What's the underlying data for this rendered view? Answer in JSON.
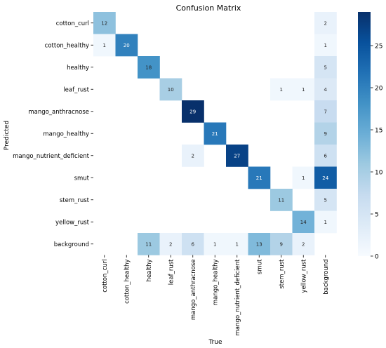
{
  "chart_data": {
    "type": "heatmap",
    "title": "Confusion Matrix",
    "xlabel": "True",
    "ylabel": "Predicted",
    "x_categories": [
      "cotton_curl",
      "cotton_healthy",
      "healthy",
      "leaf_rust",
      "mango_anthracnose",
      "mango_healthy",
      "mango_nutrient_deficient",
      "smut",
      "stem_rust",
      "yellow_rust",
      "background"
    ],
    "y_categories": [
      "cotton_curl",
      "cotton_healthy",
      "healthy",
      "leaf_rust",
      "mango_anthracnose",
      "mango_healthy",
      "mango_nutrient_deficient",
      "smut",
      "stem_rust",
      "yellow_rust",
      "background"
    ],
    "matrix": [
      [
        12,
        null,
        null,
        null,
        null,
        null,
        null,
        null,
        null,
        null,
        2
      ],
      [
        1,
        20,
        null,
        null,
        null,
        null,
        null,
        null,
        null,
        null,
        1
      ],
      [
        null,
        null,
        18,
        null,
        null,
        null,
        null,
        null,
        null,
        null,
        5
      ],
      [
        null,
        null,
        null,
        10,
        null,
        null,
        null,
        null,
        1,
        1,
        4
      ],
      [
        null,
        null,
        null,
        null,
        29,
        null,
        null,
        null,
        null,
        null,
        7
      ],
      [
        null,
        null,
        null,
        null,
        null,
        21,
        null,
        null,
        null,
        null,
        9
      ],
      [
        null,
        null,
        null,
        null,
        2,
        null,
        27,
        null,
        null,
        null,
        6
      ],
      [
        null,
        null,
        null,
        null,
        null,
        null,
        null,
        21,
        null,
        1,
        24
      ],
      [
        null,
        null,
        null,
        null,
        null,
        null,
        null,
        null,
        11,
        null,
        5
      ],
      [
        null,
        null,
        null,
        null,
        null,
        null,
        null,
        null,
        null,
        14,
        1
      ],
      [
        null,
        null,
        11,
        2,
        6,
        1,
        1,
        13,
        9,
        2,
        null
      ]
    ],
    "colorbar": {
      "min": 0,
      "max": 29,
      "ticks": [
        0,
        5,
        10,
        15,
        20,
        25
      ]
    },
    "colormap": {
      "low": "#f7fbff",
      "high": "#08306b"
    }
  }
}
